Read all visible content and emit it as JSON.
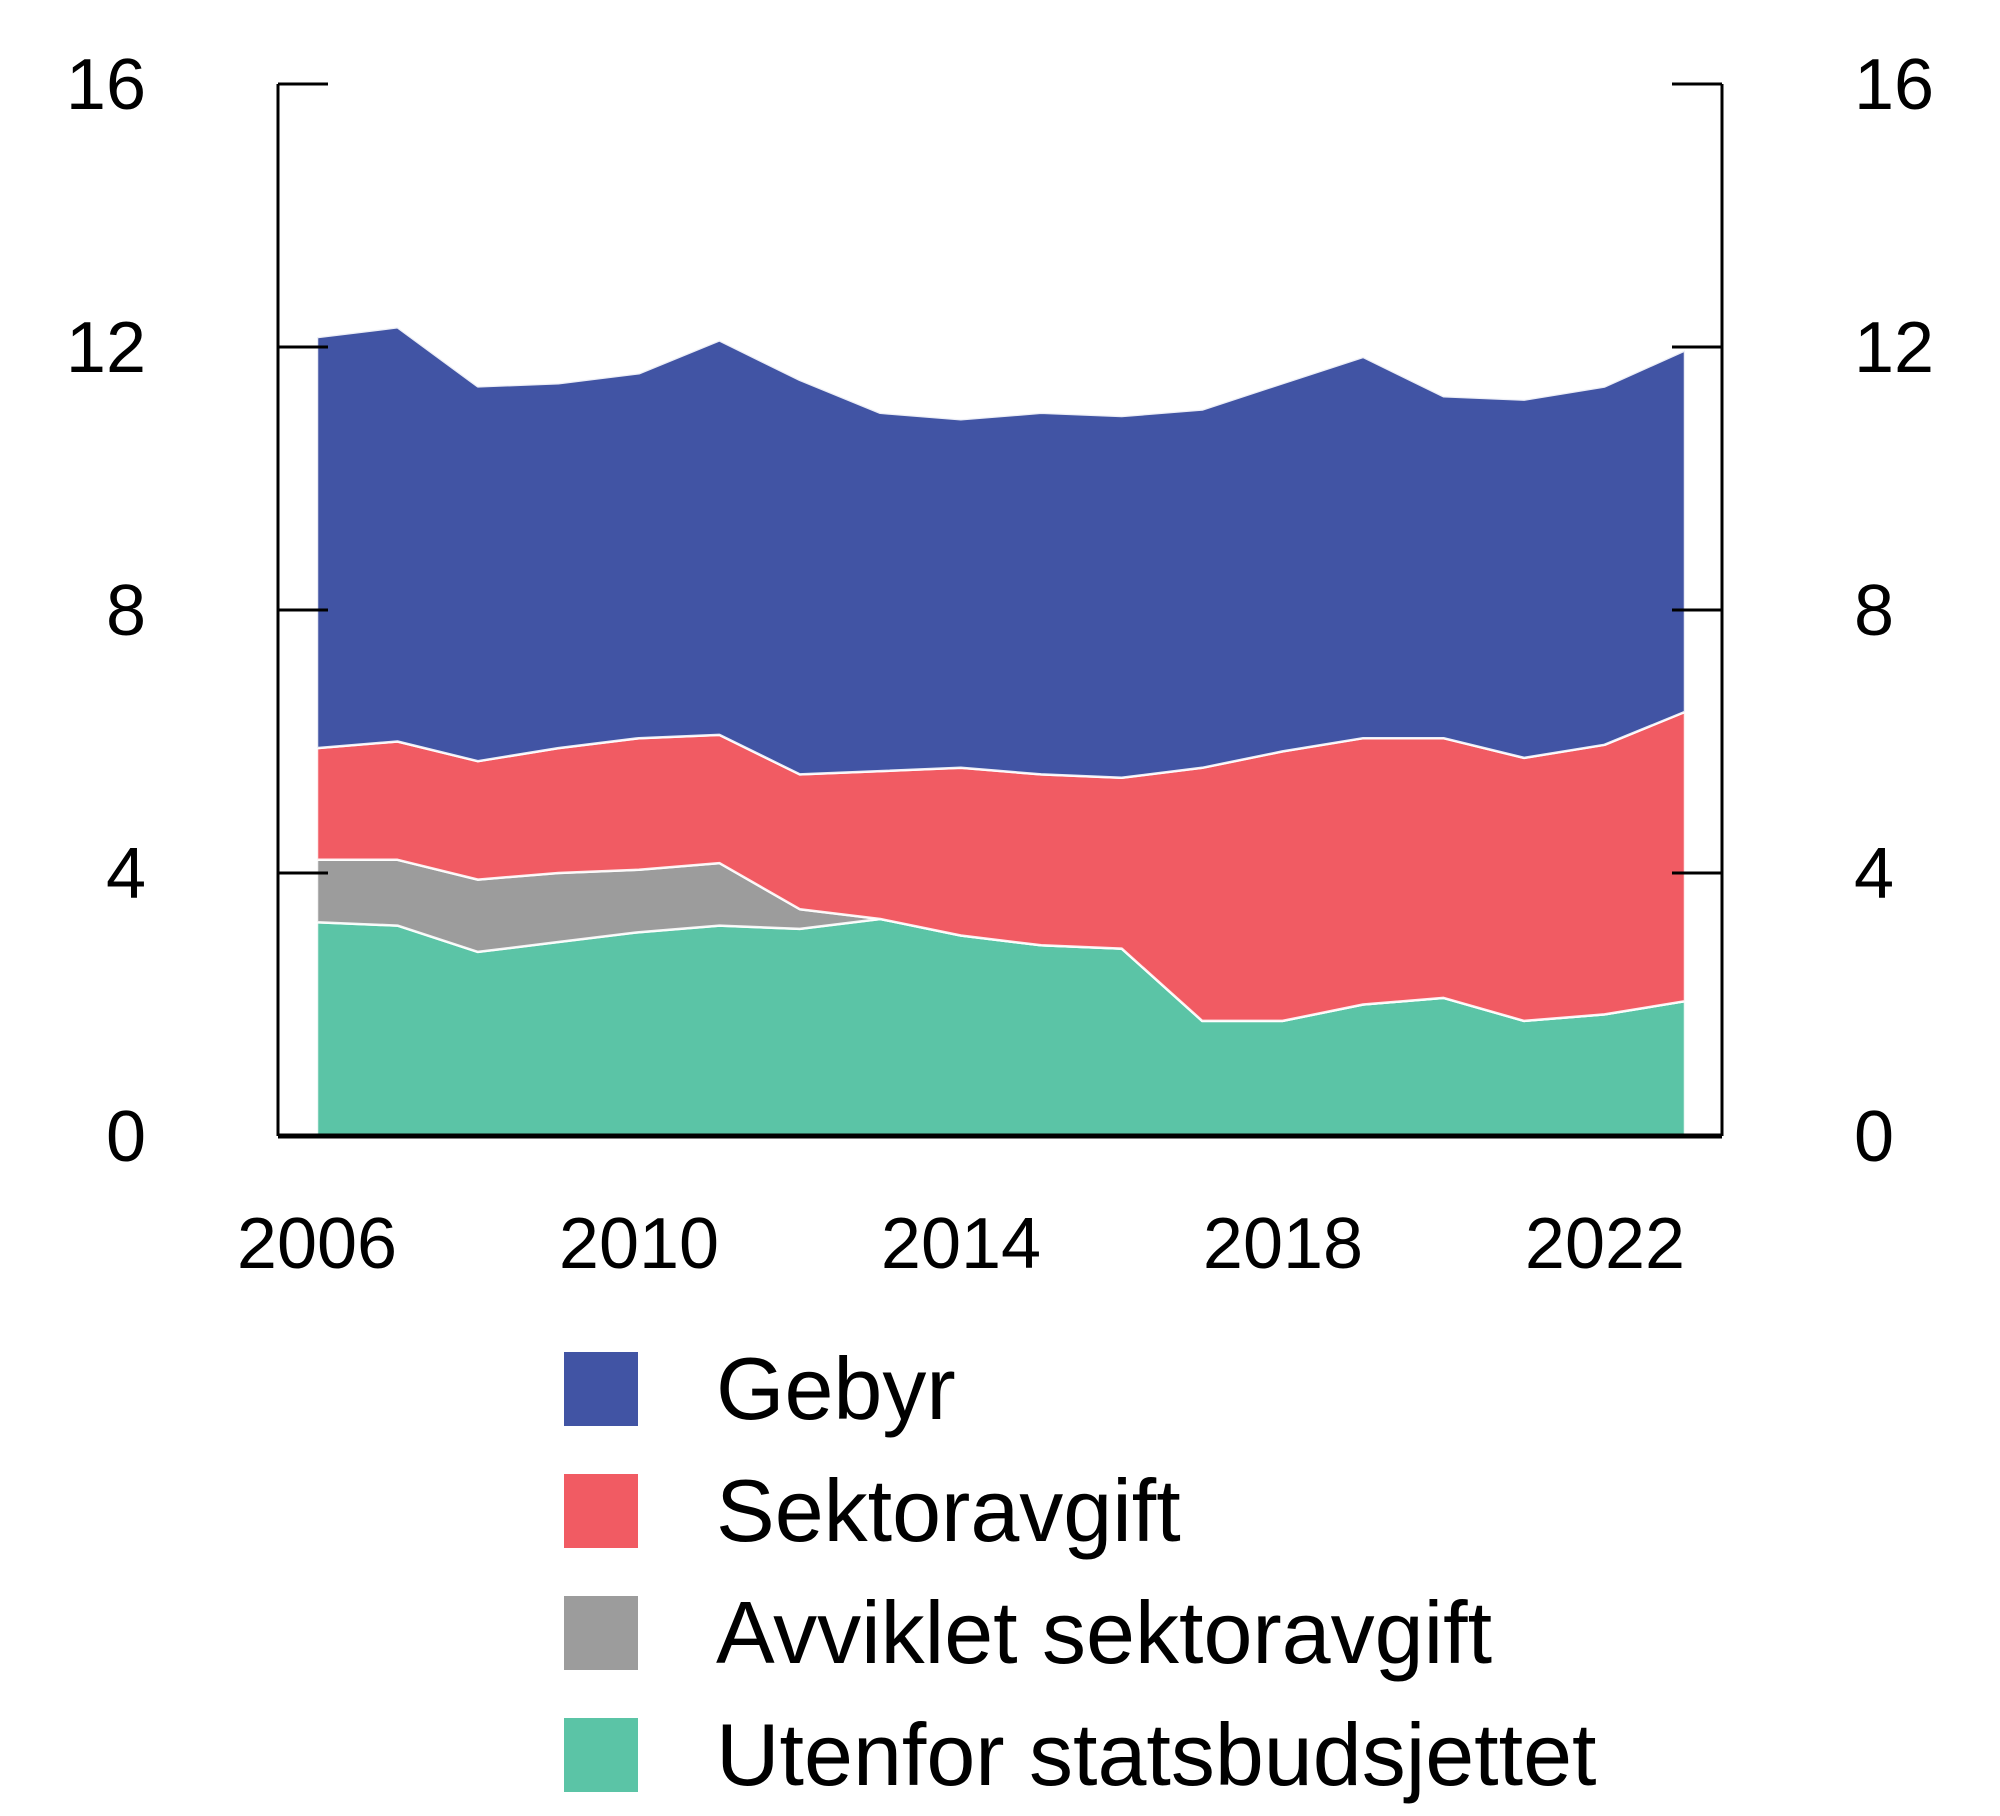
{
  "figure": {
    "background": "#ffffff"
  },
  "chart_data": {
    "type": "area",
    "stacked": true,
    "title": "",
    "xlabel": "",
    "ylabel": "",
    "x": [
      2006,
      2007,
      2008,
      2009,
      2010,
      2011,
      2012,
      2013,
      2014,
      2015,
      2016,
      2017,
      2018,
      2019,
      2020,
      2021,
      2022,
      2023
    ],
    "x_tick_years": [
      2006,
      2010,
      2014,
      2018,
      2022
    ],
    "x_tick_labels": [
      "2006",
      "2010",
      "2014",
      "2018",
      "2022"
    ],
    "y_tick_values": [
      16,
      12,
      8,
      4,
      0
    ],
    "y_tick_labels": [
      "16",
      "12",
      "8",
      "4",
      "0"
    ],
    "ylim": [
      0,
      16
    ],
    "grid": false,
    "legend_position": "bottom-left",
    "series": [
      {
        "name": "Utenfor statsbudsjettet",
        "color": "#5BC4A6",
        "values": [
          3.25,
          3.2,
          2.8,
          2.95,
          3.1,
          3.2,
          3.15,
          3.3,
          3.05,
          2.9,
          2.85,
          1.75,
          1.75,
          2.0,
          2.1,
          1.75,
          1.85,
          2.05
        ]
      },
      {
        "name": "Avviklet sektoravgift",
        "color": "#9C9C9C",
        "values": [
          0.95,
          1.0,
          1.1,
          1.05,
          0.95,
          0.95,
          0.3,
          0,
          0,
          0,
          0,
          0,
          0,
          0,
          0,
          0,
          0,
          0
        ]
      },
      {
        "name": "Sektoravgift",
        "color": "#F15B63",
        "values": [
          1.7,
          1.8,
          1.8,
          1.9,
          2.0,
          1.95,
          2.05,
          2.25,
          2.55,
          2.6,
          2.6,
          3.85,
          4.1,
          4.05,
          3.95,
          4.0,
          4.1,
          4.4
        ]
      },
      {
        "name": "Gebyr",
        "color": "#4154A4",
        "values": [
          6.25,
          6.3,
          5.7,
          5.55,
          5.55,
          6.0,
          6.0,
          5.45,
          5.3,
          5.5,
          5.5,
          5.45,
          5.6,
          5.8,
          5.2,
          5.45,
          5.45,
          5.5
        ]
      }
    ],
    "legend": [
      {
        "label": "Gebyr",
        "color": "#4154A4"
      },
      {
        "label": "Sektoravgift",
        "color": "#F15B63"
      },
      {
        "label": "Avviklet sektoravgift",
        "color": "#9C9C9C"
      },
      {
        "label": "Utenfor statsbudsjettet",
        "color": "#5BC4A6"
      }
    ]
  }
}
